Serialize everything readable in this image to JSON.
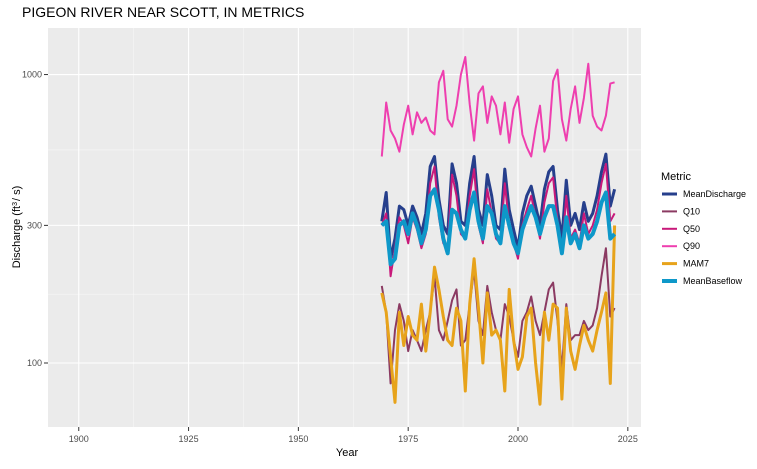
{
  "chart_data": {
    "type": "line",
    "title": "PIGEON RIVER NEAR SCOTT, IN  METRICS",
    "xlabel": "Year",
    "ylabel_main": "Discharge (ft",
    "ylabel_sup": "3",
    "ylabel_tail": "/ s)",
    "x_ticks": [
      1900,
      1925,
      1950,
      1975,
      2000,
      2025
    ],
    "x_tick_labels": [
      "1900",
      "1925",
      "1950",
      "1975",
      "2000",
      "2025"
    ],
    "y_ticks": [
      100,
      300,
      1000
    ],
    "y_tick_labels": [
      "100",
      "300",
      "1000"
    ],
    "xlim": [
      1893,
      2028
    ],
    "ylim": [
      60,
      1450
    ],
    "y_scale": "log10",
    "grid": true,
    "legend_position": "right",
    "legend_title": "Metric",
    "x": [
      1969,
      1970,
      1971,
      1972,
      1973,
      1974,
      1975,
      1976,
      1977,
      1978,
      1979,
      1980,
      1981,
      1982,
      1983,
      1984,
      1985,
      1986,
      1987,
      1988,
      1989,
      1990,
      1991,
      1992,
      1993,
      1994,
      1995,
      1996,
      1997,
      1998,
      1999,
      2000,
      2001,
      2002,
      2003,
      2004,
      2005,
      2006,
      2007,
      2008,
      2009,
      2010,
      2011,
      2012,
      2013,
      2014,
      2015,
      2016,
      2017,
      2018,
      2019,
      2020,
      2021,
      2022
    ],
    "series": [
      {
        "name": "MeanDischarge",
        "color": "#263f8c",
        "width": 3,
        "values": [
          310,
          390,
          230,
          270,
          350,
          340,
          300,
          350,
          320,
          280,
          330,
          480,
          520,
          370,
          300,
          280,
          490,
          420,
          310,
          300,
          420,
          520,
          340,
          300,
          450,
          380,
          300,
          290,
          470,
          340,
          290,
          250,
          330,
          380,
          410,
          350,
          300,
          400,
          460,
          480,
          340,
          270,
          430,
          300,
          330,
          290,
          360,
          310,
          330,
          380,
          460,
          530,
          350,
          400
        ]
      },
      {
        "name": "Q10",
        "color": "#8b3a62",
        "width": 2,
        "values": [
          185,
          150,
          85,
          130,
          160,
          140,
          110,
          130,
          120,
          110,
          130,
          150,
          200,
          130,
          120,
          140,
          165,
          180,
          115,
          120,
          160,
          210,
          140,
          125,
          185,
          150,
          130,
          120,
          160,
          145,
          120,
          105,
          140,
          150,
          170,
          140,
          125,
          150,
          180,
          190,
          140,
          95,
          160,
          120,
          125,
          125,
          140,
          130,
          135,
          155,
          200,
          250,
          145,
          155
        ]
      },
      {
        "name": "Q50",
        "color": "#c8197a",
        "width": 2,
        "values": [
          300,
          330,
          200,
          250,
          320,
          300,
          260,
          320,
          290,
          250,
          280,
          420,
          480,
          320,
          260,
          250,
          450,
          380,
          280,
          270,
          380,
          470,
          300,
          260,
          400,
          330,
          270,
          260,
          420,
          300,
          260,
          230,
          300,
          340,
          380,
          320,
          270,
          360,
          420,
          440,
          310,
          240,
          380,
          270,
          290,
          260,
          330,
          280,
          300,
          340,
          420,
          490,
          310,
          330
        ]
      },
      {
        "name": "Q90",
        "color": "#ee3faf",
        "width": 2,
        "values": [
          520,
          800,
          640,
          600,
          540,
          670,
          780,
          620,
          740,
          680,
          710,
          640,
          620,
          940,
          1030,
          700,
          660,
          780,
          1000,
          1150,
          790,
          590,
          860,
          910,
          680,
          840,
          780,
          620,
          800,
          580,
          760,
          840,
          620,
          560,
          520,
          650,
          780,
          540,
          600,
          950,
          1040,
          700,
          590,
          760,
          910,
          680,
          830,
          1090,
          720,
          660,
          640,
          720,
          930,
          940
        ]
      },
      {
        "name": "MAM7",
        "color": "#e7a31b",
        "width": 3,
        "values": [
          175,
          150,
          105,
          73,
          150,
          115,
          145,
          125,
          120,
          160,
          110,
          150,
          215,
          180,
          145,
          120,
          115,
          155,
          140,
          80,
          160,
          230,
          155,
          100,
          175,
          125,
          130,
          120,
          80,
          180,
          120,
          95,
          105,
          145,
          155,
          100,
          72,
          150,
          120,
          160,
          155,
          75,
          155,
          110,
          95,
          115,
          135,
          120,
          110,
          130,
          150,
          175,
          85,
          300
        ]
      },
      {
        "name": "MeanBaseflow",
        "color": "#0e98c9",
        "width": 4,
        "values": [
          300,
          310,
          220,
          230,
          300,
          310,
          280,
          330,
          300,
          260,
          290,
          380,
          400,
          340,
          270,
          240,
          340,
          330,
          290,
          270,
          340,
          390,
          310,
          270,
          350,
          330,
          280,
          260,
          350,
          300,
          260,
          240,
          290,
          320,
          350,
          320,
          280,
          320,
          350,
          350,
          300,
          240,
          320,
          260,
          280,
          250,
          300,
          270,
          280,
          310,
          360,
          390,
          270,
          280
        ]
      }
    ]
  }
}
